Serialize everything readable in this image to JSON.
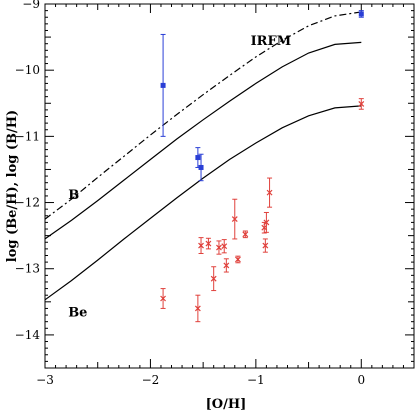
{
  "chart_data": {
    "type": "scatter",
    "title": "",
    "xlabel": "[O/H]",
    "ylabel": "log (Be/H),  log (B/H)",
    "xlim": [
      -3,
      0.5
    ],
    "ylim": [
      -14.5,
      -9
    ],
    "grid": false,
    "legend": "none",
    "x_ticks": [
      "−3",
      "−2",
      "−1",
      "0"
    ],
    "y_ticks": [
      "−14",
      "−13",
      "−12",
      "−11",
      "−10",
      "−9"
    ],
    "x_tick_values": [
      -3,
      -2,
      -1,
      0
    ],
    "y_tick_values": [
      -14,
      -13,
      -12,
      -11,
      -10,
      -9
    ],
    "annotations": [
      {
        "text": "IRFM",
        "x": -1.05,
        "y": -9.62
      },
      {
        "text": "B",
        "x": -2.78,
        "y": -11.95
      },
      {
        "text": "Be",
        "x": -2.78,
        "y": -13.72
      }
    ],
    "curves": [
      {
        "style": "dash-dot",
        "color": "#000000",
        "x": [
          -3.0,
          -2.75,
          -2.5,
          -2.25,
          -2.0,
          -1.75,
          -1.5,
          -1.25,
          -1.0,
          -0.75,
          -0.5,
          -0.25,
          0.0
        ],
        "y": [
          -12.25,
          -11.95,
          -11.62,
          -11.3,
          -10.98,
          -10.67,
          -10.37,
          -10.08,
          -9.8,
          -9.55,
          -9.33,
          -9.18,
          -9.12
        ]
      },
      {
        "style": "solid",
        "color": "#000000",
        "x": [
          -3.0,
          -2.75,
          -2.5,
          -2.25,
          -2.0,
          -1.75,
          -1.5,
          -1.25,
          -1.0,
          -0.75,
          -0.5,
          -0.25,
          0.0
        ],
        "y": [
          -12.55,
          -12.27,
          -11.97,
          -11.66,
          -11.35,
          -11.04,
          -10.75,
          -10.47,
          -10.2,
          -9.95,
          -9.74,
          -9.61,
          -9.58
        ]
      },
      {
        "style": "solid",
        "color": "#000000",
        "x": [
          -3.0,
          -2.75,
          -2.5,
          -2.25,
          -2.0,
          -1.75,
          -1.5,
          -1.25,
          -1.0,
          -0.75,
          -0.5,
          -0.25,
          0.0
        ],
        "y": [
          -13.47,
          -13.18,
          -12.87,
          -12.55,
          -12.24,
          -11.93,
          -11.63,
          -11.35,
          -11.1,
          -10.87,
          -10.69,
          -10.57,
          -10.54
        ]
      }
    ],
    "series": [
      {
        "marker": "square",
        "color": "#2a3fd6",
        "points": [
          {
            "x": -1.88,
            "y": -10.23,
            "err": 0.77
          },
          {
            "x": -1.55,
            "y": -11.32,
            "err": 0.15
          },
          {
            "x": -1.52,
            "y": -11.47,
            "err": 0.2
          },
          {
            "x": 0.0,
            "y": -9.15,
            "err": 0.05
          }
        ]
      },
      {
        "marker": "cross",
        "color": "#e0413c",
        "points": [
          {
            "x": -1.88,
            "y": -13.45,
            "err": 0.15
          },
          {
            "x": -1.55,
            "y": -13.6,
            "err": 0.2
          },
          {
            "x": -1.52,
            "y": -12.65,
            "err": 0.12
          },
          {
            "x": -1.45,
            "y": -12.62,
            "err": 0.08
          },
          {
            "x": -1.4,
            "y": -13.15,
            "err": 0.18
          },
          {
            "x": -1.35,
            "y": -12.68,
            "err": 0.1
          },
          {
            "x": -1.3,
            "y": -12.66,
            "err": 0.1
          },
          {
            "x": -1.28,
            "y": -12.95,
            "err": 0.1
          },
          {
            "x": -1.2,
            "y": -12.25,
            "err": 0.3
          },
          {
            "x": -1.17,
            "y": -12.86,
            "err": 0.05
          },
          {
            "x": -1.1,
            "y": -12.48,
            "err": 0.05
          },
          {
            "x": -0.92,
            "y": -12.38,
            "err": 0.08
          },
          {
            "x": -0.91,
            "y": -12.65,
            "err": 0.1
          },
          {
            "x": -0.9,
            "y": -12.3,
            "err": 0.15
          },
          {
            "x": -0.87,
            "y": -11.85,
            "err": 0.22
          },
          {
            "x": 0.0,
            "y": -10.51,
            "err": 0.08
          }
        ]
      }
    ]
  }
}
